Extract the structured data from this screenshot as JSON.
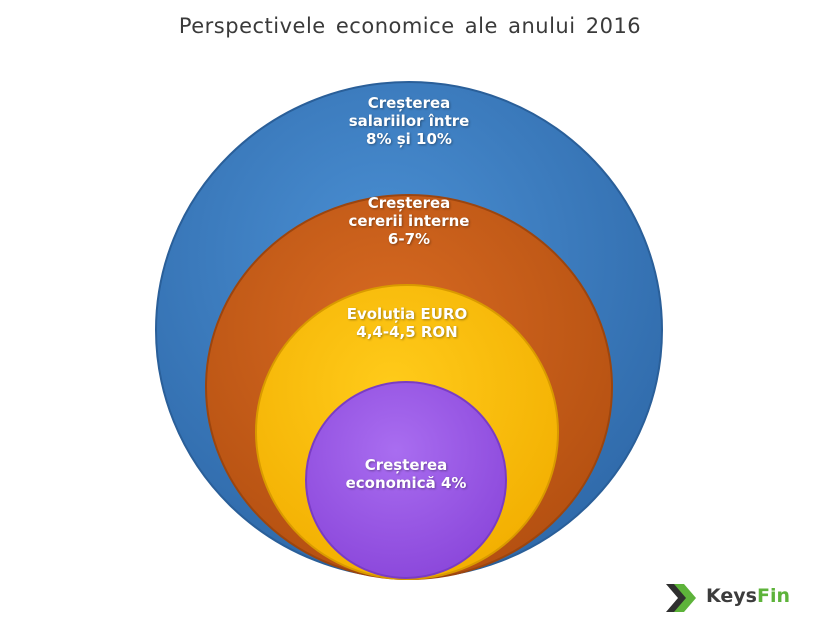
{
  "title": "Perspectivele economice ale anului 2016",
  "rings": [
    {
      "lines": [
        "Creșterea",
        "salariilor între",
        "8% și 10%"
      ],
      "color": "#3a7bbf"
    },
    {
      "lines": [
        "Creșterea",
        "cererii interne",
        "6-7%"
      ],
      "color": "#c55a16"
    },
    {
      "lines": [
        "Evoluția EURO",
        "4,4-4,5 RON"
      ],
      "color": "#fdbe00"
    },
    {
      "lines": [
        "Creșterea",
        "economică 4%"
      ],
      "color": "#9b59e6"
    }
  ],
  "logo": {
    "part1": "Keys",
    "part2": "Fin",
    "icon": "chevron-arrow-icon",
    "color": "#5db33a"
  }
}
